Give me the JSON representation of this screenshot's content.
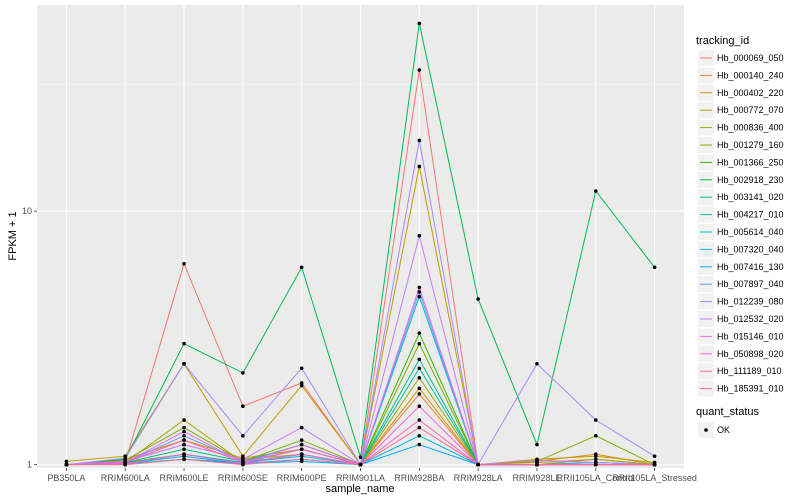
{
  "chart_data": {
    "type": "line",
    "xlabel": "sample_name",
    "ylabel": "FPKM + 1",
    "y_scale": "log10",
    "ylim": [
      0.97,
      65
    ],
    "yticks": [
      {
        "value": 1,
        "label": "1"
      },
      {
        "value": 10,
        "label": "10"
      }
    ],
    "categories": [
      "PB350LA",
      "RRIM600LA",
      "RRIM600LE",
      "RRIM600SE",
      "RRIM600PE",
      "RRIM901LA",
      "RRIM928BA",
      "RRIM928LA",
      "RRIM928LE",
      "RRII105LA_Control",
      "RRII105LA_Stressed"
    ],
    "grid": true,
    "legend_position": "right",
    "legend": {
      "title": "tracking_id",
      "quant_title": "quant_status",
      "quant_label": "OK"
    },
    "series": [
      {
        "name": "Hb_000069_050",
        "color": "#F8766D",
        "values": [
          1.0,
          1.02,
          6.2,
          1.7,
          2.1,
          1.0,
          36.0,
          1.0,
          1.0,
          1.0,
          1.0
        ]
      },
      {
        "name": "Hb_000140_240",
        "color": "#EA8331",
        "values": [
          1.0,
          1.03,
          1.2,
          1.05,
          1.1,
          1.0,
          1.9,
          1.0,
          1.02,
          1.05,
          1.0
        ]
      },
      {
        "name": "Hb_000402_220",
        "color": "#D89000",
        "values": [
          1.0,
          1.05,
          1.25,
          1.06,
          1.15,
          1.0,
          2.0,
          1.0,
          1.03,
          1.1,
          1.0
        ]
      },
      {
        "name": "Hb_000772_070",
        "color": "#C09B00",
        "values": [
          1.03,
          1.08,
          2.5,
          1.08,
          2.05,
          1.0,
          15.0,
          1.0,
          1.05,
          1.08,
          1.02
        ]
      },
      {
        "name": "Hb_000836_400",
        "color": "#A3A500",
        "values": [
          1.0,
          1.02,
          1.5,
          1.02,
          1.2,
          1.0,
          2.2,
          1.0,
          1.0,
          1.05,
          1.0
        ]
      },
      {
        "name": "Hb_001279_160",
        "color": "#7CAE00",
        "values": [
          1.0,
          1.04,
          1.4,
          1.03,
          1.25,
          1.0,
          3.0,
          1.0,
          1.03,
          1.3,
          1.0
        ]
      },
      {
        "name": "Hb_001366_250",
        "color": "#39B600",
        "values": [
          1.0,
          1.02,
          1.1,
          1.02,
          1.15,
          1.0,
          3.3,
          1.0,
          1.0,
          1.02,
          1.0
        ]
      },
      {
        "name": "Hb_002918_230",
        "color": "#00BB4E",
        "values": [
          1.0,
          1.05,
          3.0,
          2.3,
          6.0,
          1.07,
          55.0,
          4.5,
          1.2,
          12.0,
          6.0
        ]
      },
      {
        "name": "Hb_003141_020",
        "color": "#00BF7D",
        "values": [
          1.0,
          1.02,
          1.15,
          1.03,
          1.2,
          1.0,
          2.6,
          1.0,
          1.0,
          1.02,
          1.0
        ]
      },
      {
        "name": "Hb_004217_010",
        "color": "#00C1A3",
        "values": [
          1.0,
          1.01,
          1.1,
          1.02,
          1.1,
          1.0,
          2.4,
          1.0,
          1.0,
          1.0,
          1.0
        ]
      },
      {
        "name": "Hb_005614_040",
        "color": "#00BFC4",
        "values": [
          1.0,
          1.01,
          1.05,
          1.02,
          1.08,
          1.0,
          4.6,
          1.0,
          1.0,
          1.0,
          1.0
        ]
      },
      {
        "name": "Hb_007320_040",
        "color": "#00B8E5",
        "values": [
          1.0,
          1.01,
          1.08,
          1.01,
          1.05,
          1.0,
          1.3,
          1.0,
          1.0,
          1.0,
          1.0
        ]
      },
      {
        "name": "Hb_007416_130",
        "color": "#00ABFD",
        "values": [
          1.0,
          1.0,
          1.05,
          1.01,
          1.03,
          1.0,
          1.2,
          1.0,
          1.0,
          1.0,
          1.0
        ]
      },
      {
        "name": "Hb_007897_040",
        "color": "#619CFF",
        "values": [
          1.0,
          1.02,
          1.3,
          1.03,
          1.15,
          1.0,
          4.8,
          1.0,
          1.0,
          1.02,
          1.0
        ]
      },
      {
        "name": "Hb_012239_080",
        "color": "#A58AFF",
        "values": [
          1.0,
          1.06,
          2.5,
          1.3,
          2.4,
          1.0,
          19.0,
          1.0,
          2.5,
          1.5,
          1.08
        ]
      },
      {
        "name": "Hb_012532_020",
        "color": "#C77CFF",
        "values": [
          1.0,
          1.03,
          1.2,
          1.05,
          1.4,
          1.0,
          8.0,
          1.0,
          1.04,
          1.02,
          1.0
        ]
      },
      {
        "name": "Hb_015146_010",
        "color": "#E76BF3",
        "values": [
          1.0,
          1.02,
          1.35,
          1.02,
          1.2,
          1.0,
          5.0,
          1.0,
          1.0,
          1.0,
          1.0
        ]
      },
      {
        "name": "Hb_050898_020",
        "color": "#FA62DB",
        "values": [
          1.0,
          1.01,
          1.1,
          1.01,
          1.1,
          1.0,
          1.7,
          1.0,
          1.0,
          1.0,
          1.0
        ]
      },
      {
        "name": "Hb_111189_010",
        "color": "#FF62BC",
        "values": [
          1.0,
          1.02,
          1.25,
          1.02,
          1.15,
          1.0,
          1.5,
          1.0,
          1.0,
          1.0,
          1.0
        ]
      },
      {
        "name": "Hb_185391_010",
        "color": "#FF6C91",
        "values": [
          1.0,
          1.0,
          1.05,
          1.0,
          1.05,
          1.0,
          1.4,
          1.0,
          1.0,
          1.0,
          1.0
        ]
      }
    ]
  }
}
